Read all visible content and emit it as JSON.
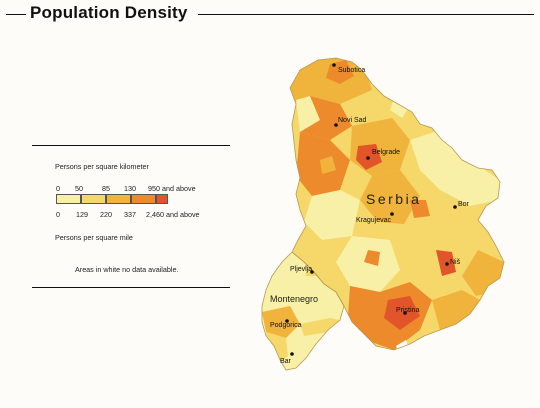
{
  "title": "Population Density",
  "legend": {
    "km_label": "Persons per square kilometer",
    "km_ticks": [
      "0",
      "50",
      "85",
      "130",
      "950 and above"
    ],
    "mi_ticks": [
      "0",
      "129",
      "220",
      "337",
      "2,460 and above"
    ],
    "mi_label": "Persons per square mile",
    "classes": [
      {
        "min_km": 0,
        "max_km": 50,
        "color": "#f8f0a6"
      },
      {
        "min_km": 50,
        "max_km": 85,
        "color": "#f5d76a"
      },
      {
        "min_km": 85,
        "max_km": 130,
        "color": "#f0b43c"
      },
      {
        "min_km": 130,
        "max_km": 950,
        "color": "#ec8a2c"
      },
      {
        "min_km": 950,
        "max_km": null,
        "color": "#e2552a"
      }
    ],
    "note": "Areas in white no data available."
  },
  "map": {
    "regions": {
      "serbia": "Serbia",
      "montenegro": "Montenegro"
    },
    "cities": [
      {
        "name": "Subotica"
      },
      {
        "name": "Novi Sad"
      },
      {
        "name": "Belgrade"
      },
      {
        "name": "Kragujevac"
      },
      {
        "name": "Bor"
      },
      {
        "name": "Niš"
      },
      {
        "name": "Pristina"
      },
      {
        "name": "Pljevlja"
      },
      {
        "name": "Podgorica"
      },
      {
        "name": "Bar"
      }
    ]
  }
}
